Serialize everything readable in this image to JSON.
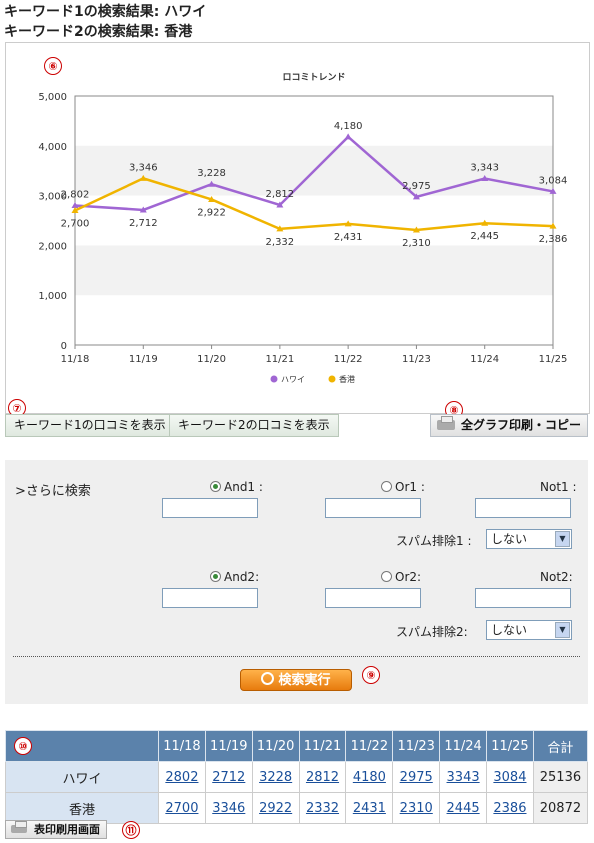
{
  "headings": {
    "kw1": "キーワード1の検索結果: ハワイ",
    "kw2": "キーワード2の検索結果: 香港"
  },
  "badges": {
    "b6": "⑥",
    "b7": "⑦",
    "b8": "⑧",
    "b9": "⑨",
    "b10": "⑩",
    "b11": "⑪"
  },
  "chart_data": {
    "type": "line",
    "title": "ロコミトレンド",
    "categories": [
      "11/18",
      "11/19",
      "11/20",
      "11/21",
      "11/22",
      "11/23",
      "11/24",
      "11/25"
    ],
    "series": [
      {
        "name": "ハワイ",
        "color": "#a066d3",
        "values": [
          2802,
          2712,
          3228,
          2812,
          4180,
          2975,
          3343,
          3084
        ]
      },
      {
        "name": "香港",
        "color": "#f0b400",
        "values": [
          2700,
          3346,
          2922,
          2332,
          2431,
          2310,
          2445,
          2386
        ]
      }
    ],
    "ylim": [
      0,
      5000
    ],
    "yticks": [
      "0",
      "1,000",
      "2,000",
      "3,000",
      "4,000",
      "5,000"
    ],
    "legend": "bottom",
    "grid": true
  },
  "buttons": {
    "show_kw1": "キーワード1の口コミを表示",
    "show_kw2": "キーワード2の口コミを表示",
    "print_all": "全グラフ印刷・コピー",
    "search_exec": "検索実行",
    "print_table": "表印刷用画面"
  },
  "search": {
    "title": ">さらに検索",
    "and1": "And1 :",
    "or1": "Or1 :",
    "not1": "Not1 :",
    "spam1": "スパム排除1 :",
    "spam1_value": "しない",
    "and2": "And2:",
    "or2": "Or2:",
    "not2": "Not2:",
    "spam2": "スパム排除2:",
    "spam2_value": "しない"
  },
  "table": {
    "headers": [
      "11/18",
      "11/19",
      "11/20",
      "11/21",
      "11/22",
      "11/23",
      "11/24",
      "11/25",
      "合計"
    ],
    "rows": [
      {
        "label": "ハワイ",
        "values": [
          "2802",
          "2712",
          "3228",
          "2812",
          "4180",
          "2975",
          "3343",
          "3084"
        ],
        "total": "25136"
      },
      {
        "label": "香港",
        "values": [
          "2700",
          "3346",
          "2922",
          "2332",
          "2431",
          "2310",
          "2445",
          "2386"
        ],
        "total": "20872"
      }
    ]
  }
}
